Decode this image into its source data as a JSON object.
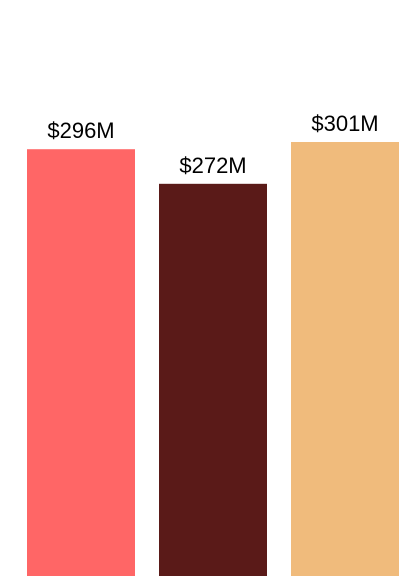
{
  "chart_data": {
    "type": "bar",
    "title": "",
    "xlabel": "",
    "ylabel": "",
    "ylim": [
      0,
      301
    ],
    "grid": false,
    "categories": [
      "",
      "",
      ""
    ],
    "values": [
      296,
      272,
      301
    ],
    "labels": [
      "$296M",
      "$272M",
      "$301M"
    ],
    "colors": [
      "#ff6666",
      "#5a1a18",
      "#f0bb7c"
    ]
  }
}
